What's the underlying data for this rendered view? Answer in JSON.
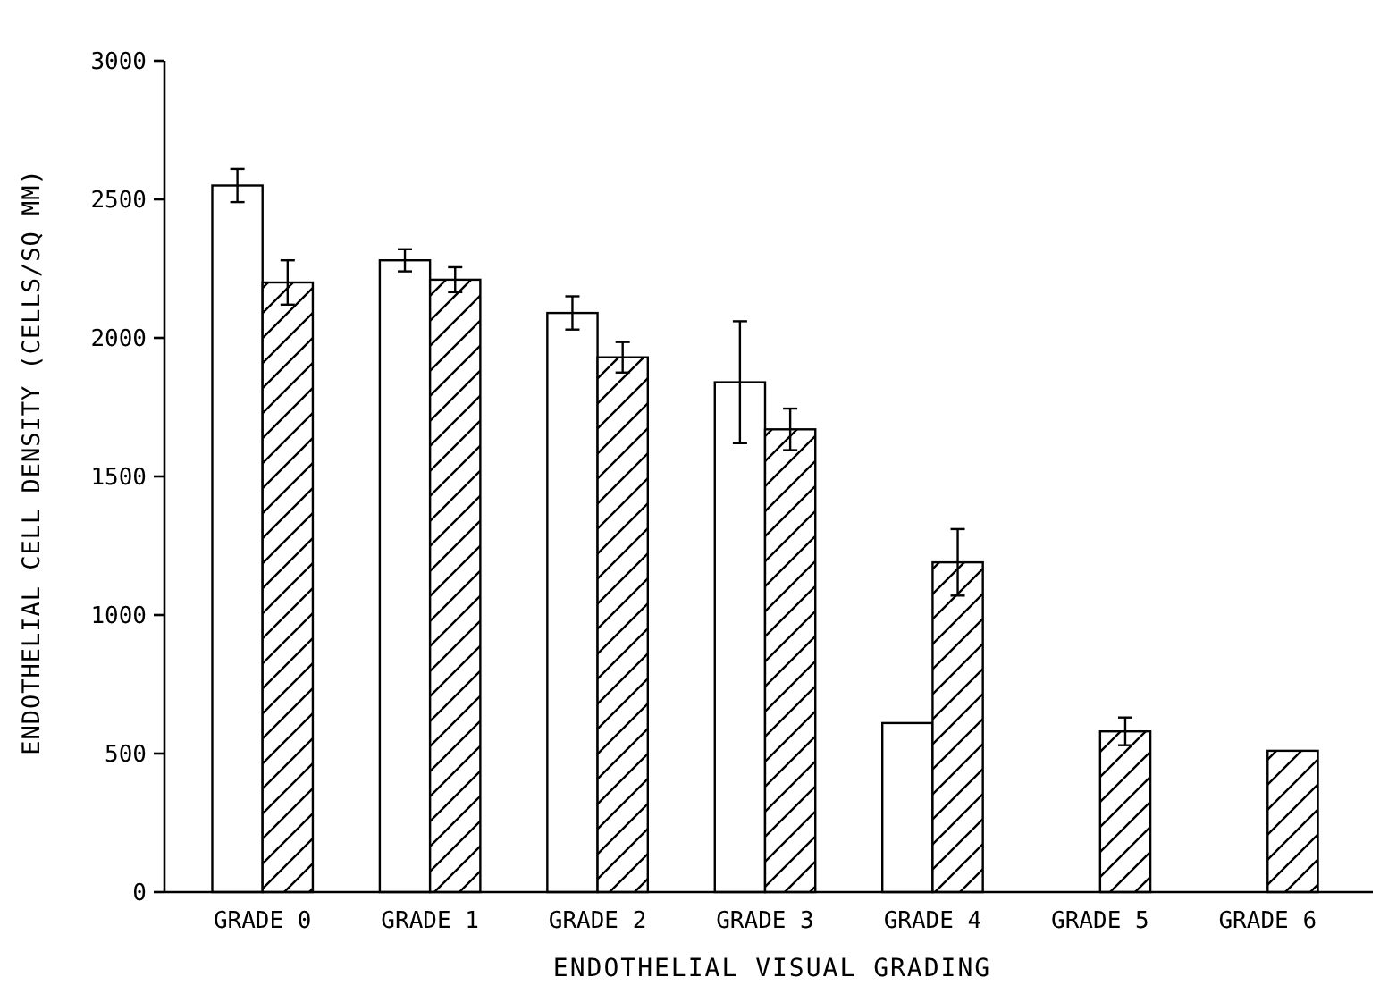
{
  "chart_data": {
    "type": "bar",
    "xlabel": "ENDOTHELIAL VISUAL GRADING",
    "ylabel": "ENDOTHELIAL CELL DENSITY (CELLS/SQ MM)",
    "categories": [
      "GRADE 0",
      "GRADE 1",
      "GRADE 2",
      "GRADE 3",
      "GRADE 4",
      "GRADE 5",
      "GRADE 6"
    ],
    "series": [
      {
        "color": "#ffffff",
        "values": [
          2550,
          2280,
          2090,
          1840,
          610,
          null,
          null
        ],
        "errors": [
          60,
          40,
          60,
          220,
          null,
          null,
          null
        ]
      },
      {
        "color": "#000000",
        "values": [
          2200,
          2210,
          1930,
          1670,
          1190,
          580,
          510
        ],
        "errors": [
          80,
          45,
          55,
          75,
          120,
          50,
          null
        ]
      }
    ],
    "ylim": [
      0,
      3000
    ],
    "yticks": [
      0,
      500,
      1000,
      1500,
      2000,
      2500,
      3000
    ]
  }
}
